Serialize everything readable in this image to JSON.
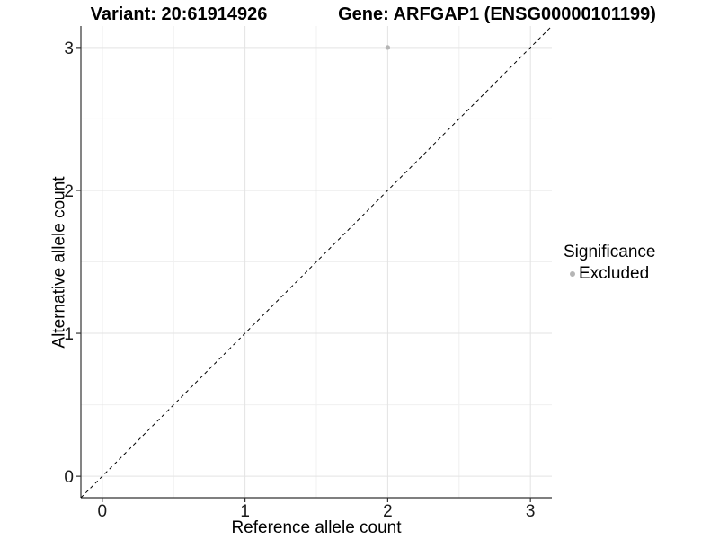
{
  "figure": {
    "title_left": "Variant: 20:61914926",
    "title_right": "Gene: ARFGAP1 (ENSG00000101199)"
  },
  "chart_data": {
    "type": "scatter",
    "title": "Variant: 20:61914926 — Gene: ARFGAP1 (ENSG00000101199)",
    "xlabel": "Reference allele count",
    "ylabel": "Alternative allele count",
    "xlim": [
      -0.15,
      3.15
    ],
    "ylim": [
      -0.15,
      3.15
    ],
    "x_ticks": [
      0,
      1,
      2,
      3
    ],
    "y_ticks": [
      0,
      1,
      2,
      3
    ],
    "x_minor_ticks": [
      0.5,
      1.5,
      2.5
    ],
    "y_minor_ticks": [
      0.5,
      1.5,
      2.5
    ],
    "grid": true,
    "points": [
      {
        "x": 2,
        "y": 3,
        "significance": "Excluded"
      }
    ],
    "identity_line": {
      "slope": 1,
      "intercept": 0,
      "style": "dashed",
      "color": "#000000"
    },
    "legend": {
      "title": "Significance",
      "position": "right",
      "entries": [
        {
          "label": "Excluded",
          "color": "#b5b5b5"
        }
      ]
    },
    "colors": {
      "major_grid": "#e3e3e3",
      "minor_grid": "#f0f0f0",
      "axis_line": "#333333",
      "tick_text": "#1a1a1a"
    }
  }
}
